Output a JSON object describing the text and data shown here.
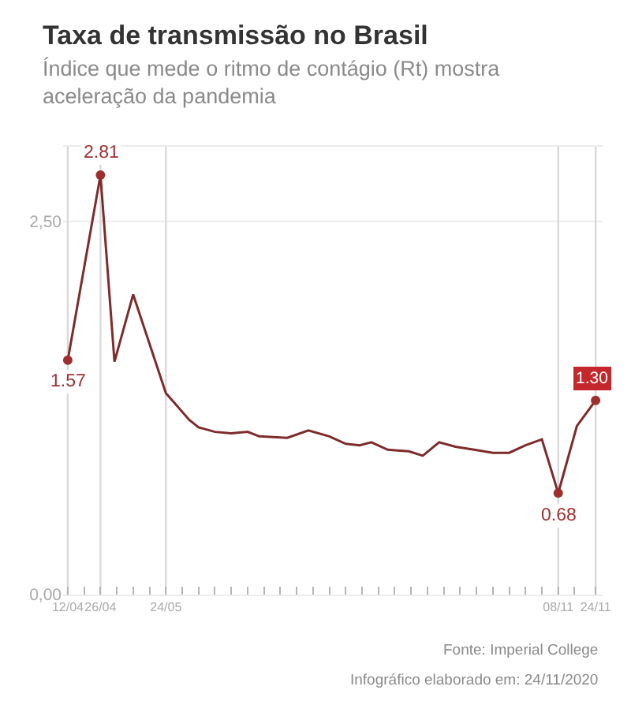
{
  "chart_data": {
    "type": "line",
    "title": "Taxa de transmissão no Brasil",
    "subtitle": "Índice que mede o ritmo de contágio (Rt) mostra aceleração da pandemia",
    "x": [
      "2020-04-12",
      "2020-04-26",
      "2020-05-02",
      "2020-05-10",
      "2020-05-24",
      "2020-06-03",
      "2020-06-07",
      "2020-06-14",
      "2020-06-21",
      "2020-06-28",
      "2020-07-03",
      "2020-07-15",
      "2020-07-24",
      "2020-08-02",
      "2020-08-09",
      "2020-08-15",
      "2020-08-20",
      "2020-08-27",
      "2020-09-05",
      "2020-09-11",
      "2020-09-18",
      "2020-09-25",
      "2020-10-03",
      "2020-10-11",
      "2020-10-18",
      "2020-10-25",
      "2020-11-01",
      "2020-11-08",
      "2020-11-16",
      "2020-11-24"
    ],
    "series": [
      {
        "color": "#7e2b2b",
        "marker": "none",
        "values": [
          1.57,
          2.81,
          1.56,
          2.01,
          1.35,
          1.17,
          1.12,
          1.09,
          1.08,
          1.09,
          1.06,
          1.05,
          1.1,
          1.06,
          1.01,
          1.0,
          1.02,
          0.97,
          0.96,
          0.93,
          1.02,
          0.99,
          0.97,
          0.95,
          0.95,
          1.0,
          1.04,
          0.68,
          1.13,
          1.3
        ]
      },
      {
        "type": "scatter",
        "marker": "circle",
        "color": "#9e2f2f",
        "x": [
          "2020-04-12",
          "2020-04-26",
          "2020-11-08",
          "2020-11-24"
        ],
        "values": [
          1.57,
          2.81,
          0.68,
          1.3
        ],
        "value_labels": [
          "1.57",
          "2.81",
          "0.68",
          "1.30"
        ]
      }
    ],
    "xlim": [
      "2020-04-10",
      "2020-11-27"
    ],
    "xticks": [
      {
        "value": "2020-04-12",
        "label": "12/04"
      },
      {
        "value": "2020-04-19",
        "label": null
      },
      {
        "value": "2020-04-26",
        "label": "26/04"
      },
      {
        "value": "2020-05-03",
        "label": null
      },
      {
        "value": "2020-05-10",
        "label": null
      },
      {
        "value": "2020-05-17",
        "label": null
      },
      {
        "value": "2020-05-24",
        "label": "24/05"
      },
      {
        "value": "2020-05-31",
        "label": null
      },
      {
        "value": "2020-06-07",
        "label": null
      },
      {
        "value": "2020-06-14",
        "label": null
      },
      {
        "value": "2020-06-21",
        "label": null
      },
      {
        "value": "2020-06-28",
        "label": null
      },
      {
        "value": "2020-07-05",
        "label": null
      },
      {
        "value": "2020-07-12",
        "label": null
      },
      {
        "value": "2020-07-19",
        "label": null
      },
      {
        "value": "2020-07-26",
        "label": null
      },
      {
        "value": "2020-08-02",
        "label": null
      },
      {
        "value": "2020-08-09",
        "label": null
      },
      {
        "value": "2020-08-16",
        "label": null
      },
      {
        "value": "2020-08-23",
        "label": null
      },
      {
        "value": "2020-08-30",
        "label": null
      },
      {
        "value": "2020-09-06",
        "label": null
      },
      {
        "value": "2020-09-13",
        "label": null
      },
      {
        "value": "2020-09-20",
        "label": null
      },
      {
        "value": "2020-09-27",
        "label": null
      },
      {
        "value": "2020-10-04",
        "label": null
      },
      {
        "value": "2020-10-11",
        "label": null
      },
      {
        "value": "2020-10-18",
        "label": null
      },
      {
        "value": "2020-10-25",
        "label": null
      },
      {
        "value": "2020-11-01",
        "label": null
      },
      {
        "value": "2020-11-08",
        "label": "08/11"
      },
      {
        "value": "2020-11-15",
        "label": null
      },
      {
        "value": "2020-11-24",
        "label": "24/11"
      }
    ],
    "ylim": [
      0,
      3.0
    ],
    "yticks": [
      {
        "value": 0,
        "label": "0,00"
      },
      {
        "value": 2.5,
        "label": "2,50"
      }
    ],
    "ref_lines": [
      {
        "axis": "y",
        "value": 2.5,
        "color": "#ececec"
      },
      {
        "axis": "x",
        "value": "2020-04-12",
        "color": "#d9d9d9"
      },
      {
        "axis": "x",
        "value": "2020-04-26",
        "color": "#d9d9d9"
      },
      {
        "axis": "x",
        "value": "2020-05-24",
        "color": "#d9d9d9"
      },
      {
        "axis": "x",
        "value": "2020-11-08",
        "color": "#d9d9d9"
      },
      {
        "axis": "x",
        "value": "2020-11-24",
        "color": "#d9d9d9"
      }
    ],
    "annotations": [
      "Fonte: Imperial College",
      "Infográfico elaborado em: 24/11/2020"
    ]
  }
}
